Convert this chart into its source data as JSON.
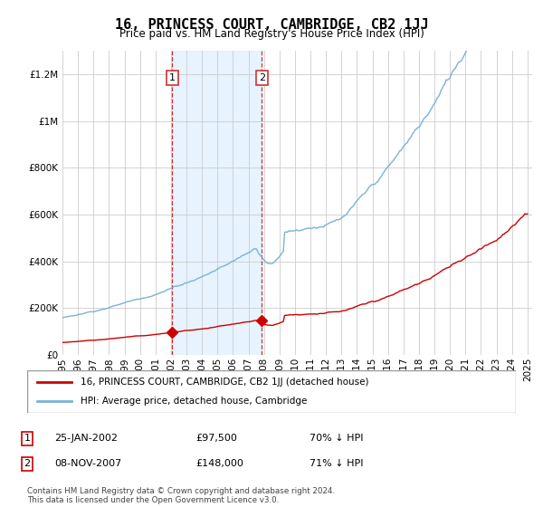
{
  "title": "16, PRINCESS COURT, CAMBRIDGE, CB2 1JJ",
  "subtitle": "Price paid vs. HM Land Registry's House Price Index (HPI)",
  "ylim": [
    0,
    1300000
  ],
  "yticks": [
    0,
    200000,
    400000,
    600000,
    800000,
    1000000,
    1200000
  ],
  "xlim_left": 1995.3,
  "xlim_right": 2025.3,
  "hpi_color": "#7ab3d4",
  "price_color": "#cc0000",
  "purchase1_date": 2002.08,
  "purchase1_price": 97500,
  "purchase2_date": 2007.87,
  "purchase2_price": 148000,
  "shade_color": "#ddeeff",
  "vline1_x": 2002.08,
  "vline2_x": 2007.87,
  "vline_color": "#cc3333",
  "legend_label1": "16, PRINCESS COURT, CAMBRIDGE, CB2 1JJ (detached house)",
  "legend_label2": "HPI: Average price, detached house, Cambridge",
  "footnote": "Contains HM Land Registry data © Crown copyright and database right 2024.\nThis data is licensed under the Open Government Licence v3.0.",
  "background_color": "#ffffff",
  "grid_color": "#cccccc"
}
